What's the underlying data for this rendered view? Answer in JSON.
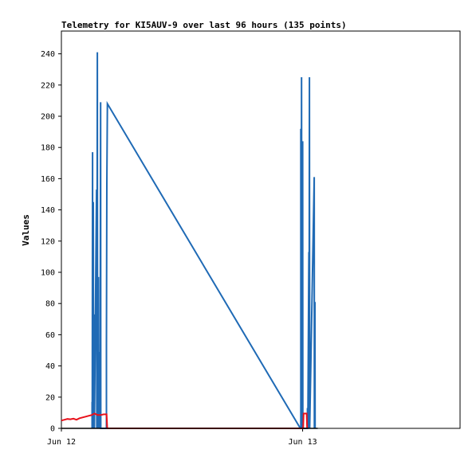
{
  "chart_data": {
    "type": "line",
    "title": "Telemetry for KI5AUV-9 over last 96 hours (135 points)",
    "ylabel": "Values",
    "xlabel": "",
    "ylim": [
      0,
      255
    ],
    "yticks": [
      0,
      20,
      40,
      60,
      80,
      100,
      120,
      140,
      160,
      180,
      200,
      220,
      240
    ],
    "x_range_hours": [
      0,
      39.66
    ],
    "xticks": [
      {
        "label": "Jun 12",
        "hour": 0
      },
      {
        "label": "Jun 13",
        "hour": 24
      }
    ],
    "grid": false,
    "legend": "none",
    "colors": {
      "blue": "#1f6ab5",
      "red": "#e8101a",
      "black": "#000000"
    },
    "series": [
      {
        "color": "blue",
        "points": [
          [
            3.05,
            0
          ],
          [
            3.05,
            17
          ],
          [
            3.07,
            0
          ],
          [
            3.1,
            177
          ],
          [
            3.12,
            0
          ],
          [
            3.17,
            145
          ],
          [
            3.2,
            0
          ],
          [
            3.26,
            73
          ],
          [
            3.28,
            0
          ],
          [
            3.5,
            153
          ],
          [
            3.52,
            0
          ],
          [
            3.58,
            241
          ],
          [
            3.6,
            0
          ],
          [
            3.68,
            97
          ],
          [
            3.7,
            0
          ],
          [
            3.83,
            49
          ],
          [
            3.85,
            0
          ],
          [
            3.9,
            209
          ],
          [
            3.92,
            0
          ],
          [
            4.48,
            0
          ],
          [
            4.48,
            53
          ],
          [
            4.52,
            156
          ],
          [
            4.58,
            208
          ],
          [
            23.77,
            0
          ],
          [
            23.82,
            0
          ],
          [
            23.82,
            192
          ],
          [
            23.85,
            0
          ],
          [
            23.89,
            225
          ],
          [
            23.92,
            0
          ],
          [
            24.0,
            184
          ],
          [
            24.02,
            0
          ],
          [
            24.48,
            0
          ],
          [
            24.48,
            13
          ],
          [
            24.52,
            0
          ],
          [
            24.62,
            113
          ],
          [
            24.64,
            0
          ],
          [
            24.68,
            225
          ],
          [
            24.7,
            0
          ],
          [
            25.15,
            161
          ],
          [
            25.17,
            0
          ],
          [
            25.22,
            81
          ],
          [
            25.24,
            0
          ]
        ]
      },
      {
        "color": "red",
        "points": [
          [
            0,
            5
          ],
          [
            0.3,
            5.5
          ],
          [
            0.6,
            6
          ],
          [
            0.9,
            5.8
          ],
          [
            1.2,
            6.2
          ],
          [
            1.5,
            5.5
          ],
          [
            1.8,
            6.5
          ],
          [
            2.1,
            7
          ],
          [
            2.4,
            7.5
          ],
          [
            2.7,
            8
          ],
          [
            3.0,
            8.5
          ],
          [
            3.3,
            9.5
          ],
          [
            3.6,
            8.5
          ],
          [
            3.9,
            8.5
          ],
          [
            4.2,
            9
          ],
          [
            4.5,
            9
          ],
          [
            4.56,
            0
          ],
          [
            24.05,
            0
          ],
          [
            24.1,
            9.5
          ],
          [
            24.4,
            9.5
          ],
          [
            24.45,
            0
          ]
        ]
      },
      {
        "color": "black",
        "points": [
          [
            0,
            0
          ],
          [
            24.0,
            0
          ],
          [
            25.5,
            0
          ]
        ]
      }
    ]
  }
}
